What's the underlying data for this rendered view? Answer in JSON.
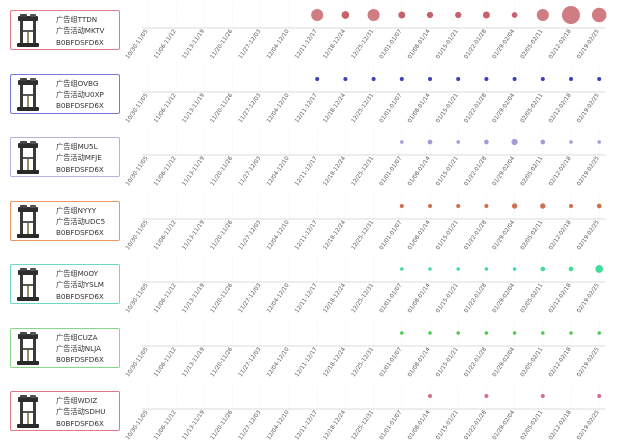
{
  "chart_data": {
    "type": "scatter",
    "title": "",
    "xlabel": "",
    "ylabel": "",
    "categories": [
      "10/30-11/05",
      "11/06-11/12",
      "11/13-11/19",
      "11/20-11/26",
      "11/27-12/03",
      "12/04-12/10",
      "12/11-12/17",
      "12/18-12/24",
      "12/25-12/31",
      "01/01-01/07",
      "01/08-01/14",
      "01/15-01/21",
      "01/22-01/28",
      "01/29-02/04",
      "02/05-02/11",
      "02/12-02/18",
      "02/19-02/25"
    ],
    "value_unit": "relative bubble size",
    "series": [
      {
        "ad_group": "广告组TTDN",
        "campaign": "广告活动MKTV",
        "asin": "B0BFDSFD6X",
        "color": "#c0505a",
        "values": [
          0,
          0,
          0,
          0,
          0,
          0,
          0.45,
          0.18,
          0.45,
          0.15,
          0.12,
          0.12,
          0.15,
          0.1,
          0.45,
          1.0,
          0.65
        ]
      },
      {
        "ad_group": "广告组OVBG",
        "campaign": "广告活动U0XP",
        "asin": "B0BFDSFD6X",
        "color": "#2b2bb0",
        "values": [
          0,
          0,
          0,
          0,
          0,
          0,
          0.05,
          0.05,
          0.05,
          0.05,
          0.05,
          0.05,
          0.05,
          0.05,
          0.05,
          0.05,
          0.05
        ]
      },
      {
        "ad_group": "广告组MU5L",
        "campaign": "广告活动MFJE",
        "asin": "B0BFDSFD6X",
        "color": "#9a8fd0",
        "values": [
          0,
          0,
          0,
          0,
          0,
          0,
          0,
          0,
          0,
          0.04,
          0.07,
          0.04,
          0.07,
          0.12,
          0.07,
          0.04,
          0.04
        ]
      },
      {
        "ad_group": "广告组NYYY",
        "campaign": "广告活动UDC5",
        "asin": "B0BFDSFD6X",
        "color": "#c8623a",
        "values": [
          0,
          0,
          0,
          0,
          0,
          0,
          0,
          0,
          0,
          0.05,
          0.05,
          0.05,
          0.05,
          0.09,
          0.09,
          0.05,
          0.07
        ]
      },
      {
        "ad_group": "广告组M0OY",
        "campaign": "广告活动YSLM",
        "asin": "B0BFDSFD6X",
        "color": "#2ed88f",
        "values": [
          0,
          0,
          0,
          0,
          0,
          0,
          0,
          0,
          0,
          0.04,
          0.04,
          0.04,
          0.04,
          0.04,
          0.07,
          0.07,
          0.18
        ]
      },
      {
        "ad_group": "广告组CUZA",
        "campaign": "广告活动NLJA",
        "asin": "B0BFDSFD6X",
        "color": "#3ec43e",
        "values": [
          0,
          0,
          0,
          0,
          0,
          0,
          0,
          0,
          0,
          0.04,
          0.04,
          0.04,
          0.04,
          0.04,
          0.04,
          0.04,
          0.04
        ]
      },
      {
        "ad_group": "广告组WDIZ",
        "campaign": "广告活动SDHU",
        "asin": "B0BFDSFD6X",
        "color": "#d0607a",
        "values": [
          0,
          0,
          0,
          0,
          0,
          0,
          0,
          0,
          0,
          0,
          0.05,
          0,
          0.05,
          0,
          0.05,
          0,
          0.05
        ]
      }
    ]
  },
  "card_border_colors": [
    "#e07a8a",
    "#7a7ad8",
    "#b8b0e0",
    "#e89860",
    "#6ed8c8",
    "#88d888",
    "#e07a8a"
  ]
}
